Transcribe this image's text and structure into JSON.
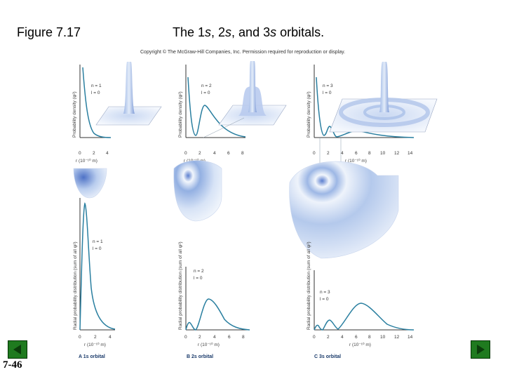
{
  "slide": {
    "figure_label": "Figure 7.17",
    "title_prefix": "The 1",
    "title_s1": "s",
    "title_mid1": ", 2",
    "title_s2": "s",
    "title_mid2": ", and 3",
    "title_s3": "s",
    "title_suffix": " orbitals.",
    "copyright": "Copyright © The McGraw-Hill Companies, Inc. Permission required for reproduction or display.",
    "slide_number": "7-46"
  },
  "navigation": {
    "prev_icon": "triangle-left-icon",
    "next_icon": "triangle-right-icon",
    "color": "#1f7a1f"
  },
  "colors": {
    "curve": "#2a7fa0",
    "orbital_light": "#dde8f7",
    "orbital_dark": "#5c7fcf"
  },
  "panels": [
    {
      "id": "A",
      "caption": "A  1s orbital",
      "n_label": "n = 1",
      "l_label": "l = 0",
      "pd_ylabel": "Probability density (ψ²)",
      "pd_ticks": [
        "0",
        "2",
        "4"
      ],
      "rd_ylabel": "Radial probability distribution (sum of all ψ²)",
      "rd_ticks": [
        "0",
        "2",
        "4"
      ],
      "xlabel": "r (10⁻¹⁰ m)"
    },
    {
      "id": "B",
      "caption": "B  2s orbital",
      "n_label": "n = 2",
      "l_label": "l = 0",
      "pd_ylabel": "Probability density (ψ²)",
      "pd_ticks": [
        "0",
        "2",
        "4",
        "6",
        "8"
      ],
      "rd_ylabel": "Radial probability distribution (sum of all ψ²)",
      "rd_ticks": [
        "0",
        "2",
        "4",
        "6",
        "8"
      ],
      "xlabel": "r (10⁻¹⁰ m)"
    },
    {
      "id": "C",
      "caption": "C  3s orbital",
      "n_label": "n = 3",
      "l_label": "l = 0",
      "pd_ylabel": "Probability density (ψ²)",
      "pd_ticks": [
        "0",
        "2",
        "4",
        "6",
        "8",
        "10",
        "12",
        "14"
      ],
      "rd_ylabel": "Radial probability distribution (sum of all ψ²)",
      "rd_ticks": [
        "0",
        "2",
        "4",
        "6",
        "8",
        "10",
        "12",
        "14"
      ],
      "xlabel": "r (10⁻¹⁰ m)"
    }
  ]
}
